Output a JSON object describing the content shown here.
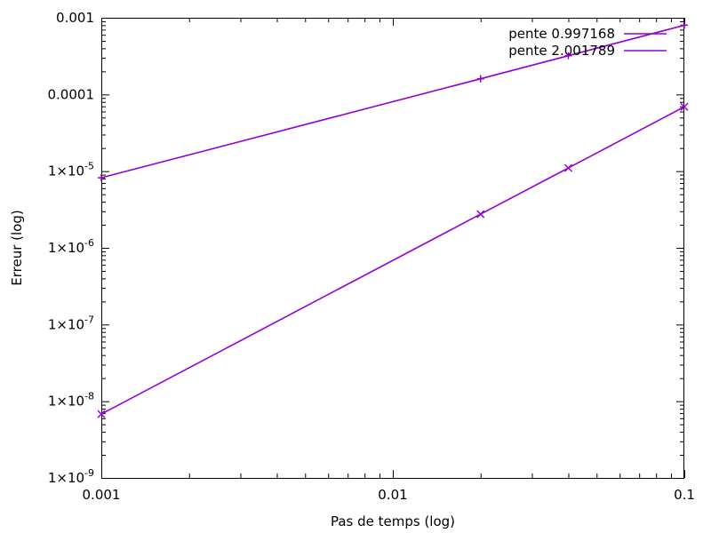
{
  "chart_data": {
    "type": "line",
    "xlabel": "Pas de temps (log)",
    "ylabel": "Erreur (log)",
    "x_scale": "log",
    "y_scale": "log",
    "xlim": [
      0.001,
      0.1
    ],
    "ylim": [
      1e-09,
      0.001
    ],
    "x_ticks": [
      {
        "value": 0.001,
        "label": "0.001"
      },
      {
        "value": 0.01,
        "label": "0.01"
      },
      {
        "value": 0.1,
        "label": "0.1"
      }
    ],
    "y_ticks": [
      {
        "value": 0.001,
        "base": "0.001",
        "exp": ""
      },
      {
        "value": 0.0001,
        "base": "0.0001",
        "exp": ""
      },
      {
        "value": 1e-05,
        "base": "1×10",
        "exp": "-5"
      },
      {
        "value": 1e-06,
        "base": "1×10",
        "exp": "-6"
      },
      {
        "value": 1e-07,
        "base": "1×10",
        "exp": "-7"
      },
      {
        "value": 1e-08,
        "base": "1×10",
        "exp": "-8"
      },
      {
        "value": 1e-09,
        "base": "1×10",
        "exp": "-9"
      }
    ],
    "grid": false,
    "legend_position": "top-right",
    "series": [
      {
        "name": "pente 0.997168",
        "color": "#9400d3",
        "marker": "plus",
        "x": [
          0.001,
          0.02,
          0.04,
          0.1
        ],
        "y": [
          8.2e-06,
          0.00016,
          0.00032,
          0.0008
        ]
      },
      {
        "name": "pente 2.001789",
        "color": "#9400d3",
        "marker": "cross",
        "x": [
          0.001,
          0.02,
          0.04,
          0.1
        ],
        "y": [
          6.8e-09,
          2.75e-06,
          1.1e-05,
          6.9e-05
        ]
      }
    ]
  }
}
